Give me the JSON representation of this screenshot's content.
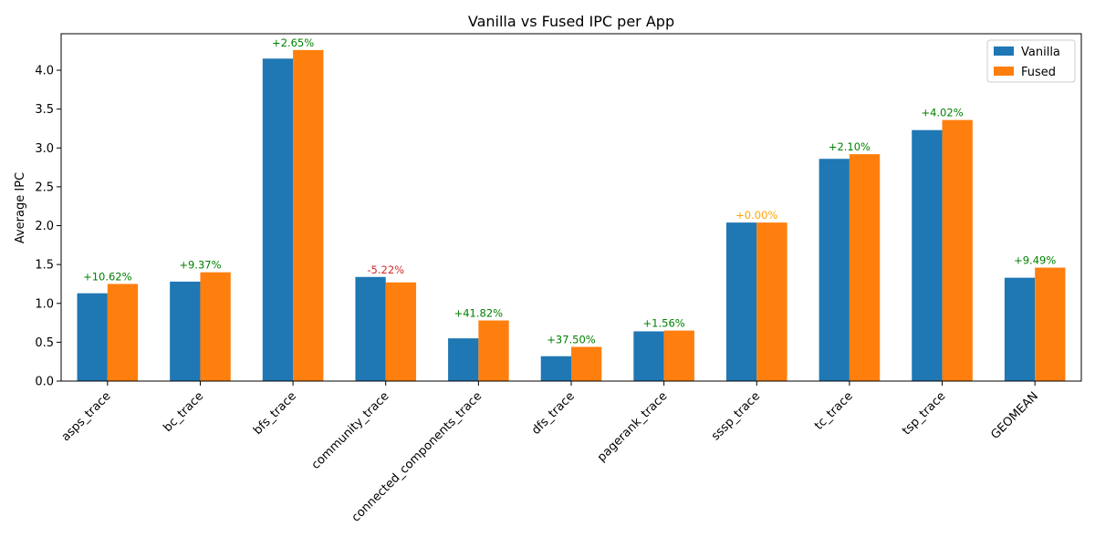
{
  "chart_data": {
    "type": "bar",
    "title": "Vanilla vs Fused IPC per App",
    "xlabel": "",
    "ylabel": "Average IPC",
    "categories": [
      "asps_trace",
      "bc_trace",
      "bfs_trace",
      "community_trace",
      "connected_components_trace",
      "dfs_trace",
      "pagerank_trace",
      "sssp_trace",
      "tc_trace",
      "tsp_trace",
      "GEOMEAN"
    ],
    "series": [
      {
        "name": "Vanilla",
        "color": "#1f77b4",
        "values": [
          1.13,
          1.28,
          4.15,
          1.34,
          0.55,
          0.32,
          0.64,
          2.04,
          2.86,
          3.23,
          1.33
        ]
      },
      {
        "name": "Fused",
        "color": "#ff7f0e",
        "values": [
          1.25,
          1.4,
          4.26,
          1.27,
          0.78,
          0.44,
          0.65,
          2.04,
          2.92,
          3.36,
          1.46
        ]
      }
    ],
    "annotations": [
      "+10.62%",
      "+9.37%",
      "+2.65%",
      "-5.22%",
      "+41.82%",
      "+37.50%",
      "+1.56%",
      "+0.00%",
      "+2.10%",
      "+4.02%",
      "+9.49%"
    ],
    "annotation_colors": {
      "positive": "#008000",
      "negative": "#d62728",
      "zero": "#ffa500"
    },
    "ylim": [
      0,
      4.47
    ],
    "yticks": [
      "0.0",
      "0.5",
      "1.0",
      "1.5",
      "2.0",
      "2.5",
      "3.0",
      "3.5",
      "4.0"
    ],
    "grid": false,
    "legend_position": "top-right"
  }
}
